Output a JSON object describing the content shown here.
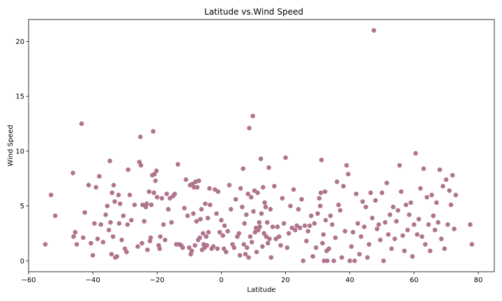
{
  "chart_data": {
    "type": "scatter",
    "title": "Latitude vs.Wind Speed",
    "xlabel": "Latitude",
    "ylabel": "Wind Speed",
    "xlim": [
      -60,
      85
    ],
    "ylim": [
      -1,
      22
    ],
    "xticks": [
      -60,
      -40,
      -20,
      0,
      20,
      40,
      60,
      80
    ],
    "yticks": [
      0,
      5,
      10,
      15,
      20
    ],
    "grid": false,
    "marker_color": "#b0748e",
    "points": [
      [
        -54.8,
        1.5
      ],
      [
        -53,
        6
      ],
      [
        -51.7,
        4.1
      ],
      [
        -46.2,
        8
      ],
      [
        -46,
        2.2
      ],
      [
        -45.5,
        2.6
      ],
      [
        -45,
        1.5
      ],
      [
        -43.5,
        12.5
      ],
      [
        -43,
        2.1
      ],
      [
        -42.5,
        4.4
      ],
      [
        -41.3,
        6.9
      ],
      [
        -40.6,
        1.6
      ],
      [
        -40,
        0.5
      ],
      [
        -39.5,
        3.4
      ],
      [
        -39,
        6.7
      ],
      [
        -38.5,
        2
      ],
      [
        -38,
        7.7
      ],
      [
        -37.5,
        3.3
      ],
      [
        -36.8,
        1.7
      ],
      [
        -36,
        4.2
      ],
      [
        -35.5,
        5
      ],
      [
        -35,
        2.8
      ],
      [
        -34.7,
        9.1
      ],
      [
        -34.5,
        3.5
      ],
      [
        -34.2,
        0.6
      ],
      [
        -34,
        6.2
      ],
      [
        -33.7,
        2.2
      ],
      [
        -33.5,
        6.9
      ],
      [
        -33.2,
        5.4
      ],
      [
        -33,
        0.3
      ],
      [
        -32.5,
        0.4
      ],
      [
        -32,
        6
      ],
      [
        -31.8,
        3.4
      ],
      [
        -31.5,
        5.2
      ],
      [
        -31,
        1.9
      ],
      [
        -30.5,
        4.1
      ],
      [
        -30,
        1.1
      ],
      [
        -29.5,
        0.8
      ],
      [
        -29.2,
        3.3
      ],
      [
        -29,
        8.3
      ],
      [
        -28.5,
        6
      ],
      [
        -28,
        3.7
      ],
      [
        -27,
        5.1
      ],
      [
        -26,
        1.3
      ],
      [
        -25.5,
        9
      ],
      [
        -25.2,
        11.3
      ],
      [
        -25,
        8.7
      ],
      [
        -24.7,
        1.6
      ],
      [
        -24.5,
        5.1
      ],
      [
        -24,
        3.6
      ],
      [
        -23.5,
        4.9
      ],
      [
        -23.2,
        5.2
      ],
      [
        -23,
        1
      ],
      [
        -22.5,
        6.3
      ],
      [
        -22.2,
        1.8
      ],
      [
        -22,
        2.1
      ],
      [
        -21.8,
        5.1
      ],
      [
        -21.5,
        7.8
      ],
      [
        -21.2,
        11.8
      ],
      [
        -21,
        6.2
      ],
      [
        -20.8,
        7.9
      ],
      [
        -20.5,
        7.3
      ],
      [
        -20.2,
        8.2
      ],
      [
        -20,
        5.8
      ],
      [
        -19.5,
        1.4
      ],
      [
        -19.2,
        1.1
      ],
      [
        -19,
        2.2
      ],
      [
        -18.5,
        5.7
      ],
      [
        -18,
        3.3
      ],
      [
        -17.5,
        1.9
      ],
      [
        -17,
        6.1
      ],
      [
        -16.5,
        4.7
      ],
      [
        -16,
        5.7
      ],
      [
        -15.5,
        3.5
      ],
      [
        -15,
        5.9
      ],
      [
        -14.5,
        6.1
      ],
      [
        -14,
        1.5
      ],
      [
        -13.5,
        8.8
      ],
      [
        -13,
        1.5
      ],
      [
        -12.5,
        1.4
      ],
      [
        -12,
        1.2
      ],
      [
        -11.5,
        4.8
      ],
      [
        -11,
        7.4
      ],
      [
        -10.5,
        4.1
      ],
      [
        -10,
        1.2
      ],
      [
        -9.7,
        6.9
      ],
      [
        -9.5,
        0.6
      ],
      [
        -9.2,
        0.9
      ],
      [
        -9,
        7
      ],
      [
        -8.7,
        4.3
      ],
      [
        -8.5,
        6.7
      ],
      [
        -8.2,
        1.4
      ],
      [
        -8,
        7.2
      ],
      [
        -7.7,
        3.6
      ],
      [
        -7.5,
        6.7
      ],
      [
        -7.2,
        1.9
      ],
      [
        -7,
        7.3
      ],
      [
        -6.7,
        2.1
      ],
      [
        -6.5,
        3.8
      ],
      [
        -6.2,
        4.7
      ],
      [
        -6,
        1
      ],
      [
        -5.7,
        2.5
      ],
      [
        -5.5,
        1.5
      ],
      [
        -5.2,
        1.2
      ],
      [
        -5,
        5.2
      ],
      [
        -4.7,
        2.2
      ],
      [
        -4.5,
        1.4
      ],
      [
        -4.2,
        3.9
      ],
      [
        -4,
        2.6
      ],
      [
        -3.7,
        6.6
      ],
      [
        -3.5,
        5.1
      ],
      [
        -3,
        1.1
      ],
      [
        -2.5,
        1.3
      ],
      [
        -2,
        6.5
      ],
      [
        -1.5,
        4.3
      ],
      [
        -1.2,
        1.1
      ],
      [
        -1,
        6.3
      ],
      [
        -0.5,
        2.6
      ],
      [
        0,
        3.7
      ],
      [
        0.5,
        2.3
      ],
      [
        0.8,
        1.1
      ],
      [
        1,
        3.2
      ],
      [
        1.5,
        0.8
      ],
      [
        2,
        2.7
      ],
      [
        2.5,
        6.9
      ],
      [
        3,
        4.7
      ],
      [
        3.5,
        1.5
      ],
      [
        4,
        1.2
      ],
      [
        4.5,
        5.6
      ],
      [
        5,
        2.2
      ],
      [
        5.5,
        2.5
      ],
      [
        5.8,
        0.5
      ],
      [
        6,
        6.6
      ],
      [
        6.5,
        4.9
      ],
      [
        6.8,
        8.4
      ],
      [
        7,
        1.5
      ],
      [
        7.2,
        3.4
      ],
      [
        7.5,
        0.6
      ],
      [
        7.8,
        4.2
      ],
      [
        8,
        1.2
      ],
      [
        8.3,
        6.1
      ],
      [
        8.5,
        0.3
      ],
      [
        8.7,
        12.1
      ],
      [
        9,
        2.2
      ],
      [
        9.3,
        5.8
      ],
      [
        9.5,
        1.7
      ],
      [
        9.8,
        13.2
      ],
      [
        10,
        4.5
      ],
      [
        10.3,
        6.4
      ],
      [
        10.5,
        2.6
      ],
      [
        10.8,
        3
      ],
      [
        11,
        0.8
      ],
      [
        11.3,
        6.2
      ],
      [
        11.5,
        2.8
      ],
      [
        11.8,
        3.5
      ],
      [
        12,
        3.1
      ],
      [
        12.3,
        9.3
      ],
      [
        12.5,
        4.3
      ],
      [
        12.8,
        1.3
      ],
      [
        13,
        6.7
      ],
      [
        13.3,
        2.5
      ],
      [
        13.5,
        5.3
      ],
      [
        13.8,
        4.9
      ],
      [
        14,
        2.2
      ],
      [
        14.3,
        3.5
      ],
      [
        14.5,
        1.6
      ],
      [
        14.8,
        8.5
      ],
      [
        15,
        2
      ],
      [
        15.3,
        4.7
      ],
      [
        15.5,
        0.3
      ],
      [
        16,
        3.1
      ],
      [
        16.5,
        6.8
      ],
      [
        17,
        2
      ],
      [
        17.5,
        3.1
      ],
      [
        18,
        2.2
      ],
      [
        18.5,
        1.4
      ],
      [
        19,
        5.7
      ],
      [
        19.5,
        3.4
      ],
      [
        20,
        9.4
      ],
      [
        20.5,
        1.2
      ],
      [
        21,
        2.5
      ],
      [
        21.5,
        5
      ],
      [
        22,
        3
      ],
      [
        22.5,
        6.5
      ],
      [
        23,
        2.8
      ],
      [
        23.5,
        3.2
      ],
      [
        24,
        4.7
      ],
      [
        24.5,
        3
      ],
      [
        25,
        5.6
      ],
      [
        25.5,
        0
      ],
      [
        26,
        3.2
      ],
      [
        26.5,
        1.8
      ],
      [
        27,
        2.7
      ],
      [
        27.5,
        3.2
      ],
      [
        28,
        4.1
      ],
      [
        28.5,
        0.4
      ],
      [
        29,
        3.4
      ],
      [
        29.5,
        1.2
      ],
      [
        30,
        4.3
      ],
      [
        30.5,
        5.7
      ],
      [
        30.8,
        5
      ],
      [
        31,
        6.2
      ],
      [
        31.2,
        9.2
      ],
      [
        31.5,
        1.6
      ],
      [
        31.8,
        2.4
      ],
      [
        32,
        0
      ],
      [
        32.3,
        6.3
      ],
      [
        32.5,
        3.7
      ],
      [
        32.8,
        0.9
      ],
      [
        33,
        0
      ],
      [
        33.5,
        1.1
      ],
      [
        34,
        4.1
      ],
      [
        34.5,
        3.3
      ],
      [
        35,
        0
      ],
      [
        35.5,
        2.1
      ],
      [
        36,
        7.2
      ],
      [
        36.5,
        5.1
      ],
      [
        37,
        4.6
      ],
      [
        37.5,
        0.3
      ],
      [
        38,
        6.8
      ],
      [
        38.5,
        2.7
      ],
      [
        39,
        8.7
      ],
      [
        39.5,
        7.9
      ],
      [
        40,
        0
      ],
      [
        40.5,
        1.3
      ],
      [
        41,
        2.6
      ],
      [
        41.5,
        0
      ],
      [
        42,
        6.1
      ],
      [
        42.5,
        3.4
      ],
      [
        43,
        0.6
      ],
      [
        43.5,
        2.2
      ],
      [
        44,
        5.4
      ],
      [
        44.5,
        3.1
      ],
      [
        45,
        4.9
      ],
      [
        45.5,
        0.3
      ],
      [
        46,
        1.5
      ],
      [
        46.5,
        6.2
      ],
      [
        47,
        3.9
      ],
      [
        47.5,
        21
      ],
      [
        48,
        5.5
      ],
      [
        48.5,
        2.9
      ],
      [
        49,
        3.3
      ],
      [
        49.5,
        1.9
      ],
      [
        50,
        6.2
      ],
      [
        50.5,
        0
      ],
      [
        51,
        3.5
      ],
      [
        51.5,
        7.1
      ],
      [
        52,
        2.4
      ],
      [
        52.5,
        4.2
      ],
      [
        53,
        1.1
      ],
      [
        53.5,
        4.9
      ],
      [
        54,
        2
      ],
      [
        54.5,
        3.6
      ],
      [
        55,
        4.6
      ],
      [
        55.5,
        8.7
      ],
      [
        56,
        6.3
      ],
      [
        56.5,
        2.3
      ],
      [
        57,
        0.9
      ],
      [
        57.5,
        5.1
      ],
      [
        58,
        2.8
      ],
      [
        58.5,
        4.2
      ],
      [
        59,
        5.3
      ],
      [
        59.5,
        0.4
      ],
      [
        60,
        3.3
      ],
      [
        60.5,
        9.8
      ],
      [
        61,
        2.4
      ],
      [
        61.5,
        3.8
      ],
      [
        62,
        6.6
      ],
      [
        62.5,
        2.2
      ],
      [
        63,
        8.4
      ],
      [
        63.5,
        1.5
      ],
      [
        64,
        5.8
      ],
      [
        64.5,
        3.3
      ],
      [
        65,
        0.9
      ],
      [
        65.5,
        6
      ],
      [
        66,
        4.1
      ],
      [
        66.5,
        2.8
      ],
      [
        67,
        5.3
      ],
      [
        67.5,
        3.5
      ],
      [
        68,
        8.3
      ],
      [
        68.5,
        2
      ],
      [
        69,
        6.8
      ],
      [
        69.5,
        1.1
      ],
      [
        70,
        7.4
      ],
      [
        70.5,
        3.3
      ],
      [
        71,
        6.4
      ],
      [
        71.5,
        5.1
      ],
      [
        72,
        7.8
      ],
      [
        72.5,
        2.9
      ],
      [
        73,
        6
      ],
      [
        77.5,
        3.3
      ],
      [
        78,
        1.5
      ]
    ]
  }
}
